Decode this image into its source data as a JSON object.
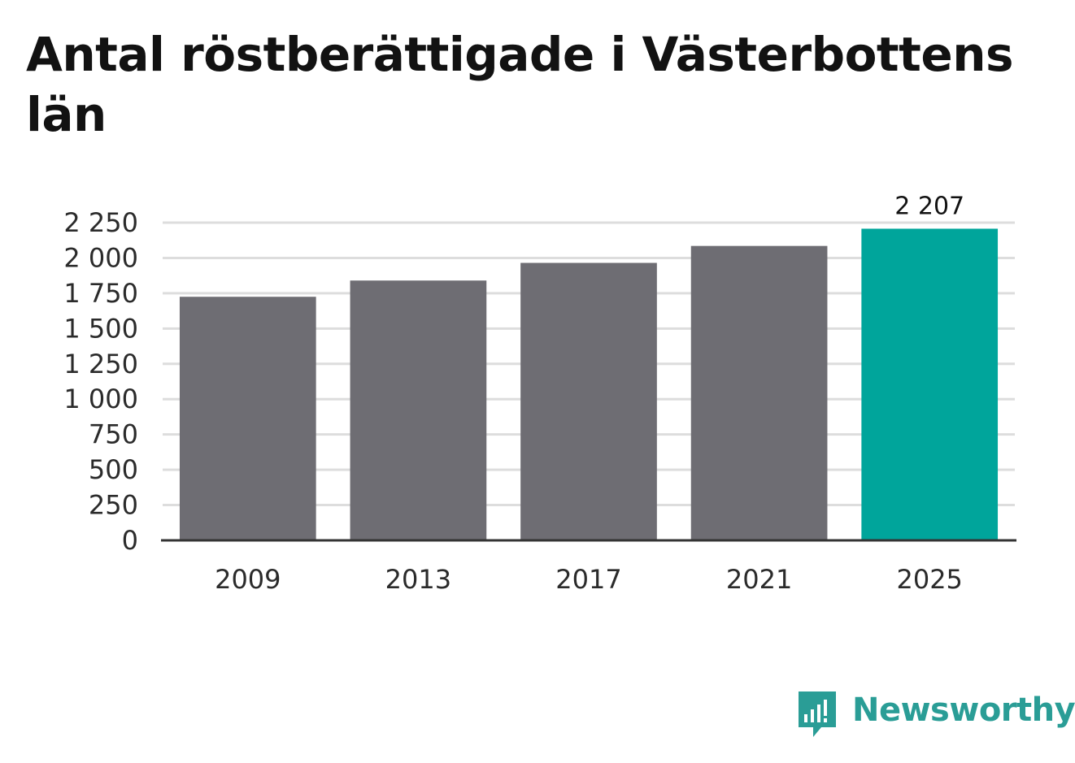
{
  "chart_data": {
    "type": "bar",
    "title": "Antal röstberättigade i Västerbottens län",
    "categories": [
      "2009",
      "2013",
      "2017",
      "2021",
      "2025"
    ],
    "values": [
      1725,
      1840,
      1965,
      2085,
      2207
    ],
    "highlight_index": 4,
    "data_labels": [
      "",
      "",
      "",
      "",
      "2 207"
    ],
    "yticks": [
      0,
      250,
      500,
      750,
      1000,
      1250,
      1500,
      1750,
      2000,
      2250
    ],
    "ytick_labels": [
      "0",
      "250",
      "500",
      "750",
      "1 000",
      "1 250",
      "1 500",
      "1 750",
      "2 000",
      "2 250"
    ],
    "ylim": [
      0,
      2250
    ],
    "grid": true,
    "colors": {
      "bar": "#6e6d73",
      "highlight": "#00a59b",
      "grid": "#dddddd",
      "axis": "#333333"
    }
  },
  "logo": {
    "text": "Newsworthy",
    "icon": "newsworthy-logo-icon",
    "color": "#2a9d96"
  }
}
